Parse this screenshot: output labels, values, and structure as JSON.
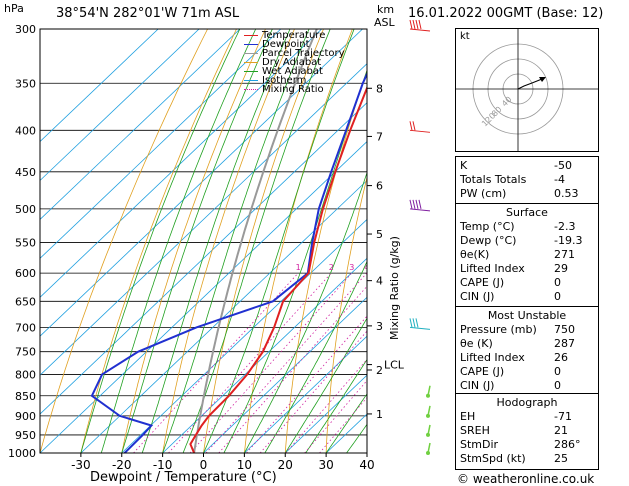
{
  "header": {
    "pressure_unit": "hPa",
    "location": "38°54'N  282°01'W  71m  ASL",
    "alt_unit_line1": "km",
    "alt_unit_line2": "ASL",
    "datetime": "16.01.2022  00GMT  (Base: 12)"
  },
  "chart_data": {
    "type": "skew-t",
    "xlabel": "Dewpoint / Temperature (°C)",
    "mixing_ratio_axis_label": "Mixing Ratio (g/kg)",
    "pressure_levels": [
      300,
      350,
      400,
      450,
      500,
      550,
      600,
      650,
      700,
      750,
      800,
      850,
      900,
      950,
      1000
    ],
    "x_ticks": [
      -30,
      -20,
      -10,
      0,
      10,
      20,
      30,
      40
    ],
    "km_ticks": [
      {
        "label": "8",
        "p": 355
      },
      {
        "label": "7",
        "p": 407
      },
      {
        "label": "6",
        "p": 468
      },
      {
        "label": "5",
        "p": 537
      },
      {
        "label": "4",
        "p": 613
      },
      {
        "label": "3",
        "p": 697
      },
      {
        "label": "2",
        "p": 790
      },
      {
        "label": "1",
        "p": 895
      }
    ],
    "lcl_label": "LCL",
    "lcl_p": 778,
    "mixing_ratio_labels": [
      "1",
      "2",
      "3",
      "4",
      "5",
      "8",
      "10",
      "15",
      "20",
      "25"
    ],
    "legend": [
      {
        "label": "Temperature",
        "color": "#e02020"
      },
      {
        "label": "Dewpoint",
        "color": "#2030d0"
      },
      {
        "label": "Parcel Trajectory",
        "color": "#999999"
      },
      {
        "label": "Dry Adiabat",
        "color": "#e0a020"
      },
      {
        "label": "Wet Adiabat",
        "color": "#20a020"
      },
      {
        "label": "Isotherm",
        "color": "#20a0e0"
      },
      {
        "label": "Mixing Ratio",
        "color": "#d020a0"
      }
    ],
    "temperature": [
      {
        "p": 1000,
        "t": -2.3
      },
      {
        "p": 975,
        "t": -5.5
      },
      {
        "p": 950,
        "t": -6.5
      },
      {
        "p": 925,
        "t": -7.5
      },
      {
        "p": 900,
        "t": -8.2
      },
      {
        "p": 850,
        "t": -8.5
      },
      {
        "p": 800,
        "t": -9.5
      },
      {
        "p": 750,
        "t": -11.5
      },
      {
        "p": 700,
        "t": -15.0
      },
      {
        "p": 650,
        "t": -19.5
      },
      {
        "p": 600,
        "t": -20.5
      },
      {
        "p": 550,
        "t": -27.0
      },
      {
        "p": 500,
        "t": -33.5
      },
      {
        "p": 450,
        "t": -40.0
      },
      {
        "p": 400,
        "t": -47.0
      },
      {
        "p": 350,
        "t": -54.5
      },
      {
        "p": 300,
        "t": -61.0
      }
    ],
    "dewpoint": [
      {
        "p": 1000,
        "t": -19.3
      },
      {
        "p": 950,
        "t": -19.5
      },
      {
        "p": 925,
        "t": -19.8
      },
      {
        "p": 900,
        "t": -30.0
      },
      {
        "p": 850,
        "t": -42.0
      },
      {
        "p": 800,
        "t": -45.0
      },
      {
        "p": 750,
        "t": -42.0
      },
      {
        "p": 700,
        "t": -34.0
      },
      {
        "p": 650,
        "t": -22.0
      },
      {
        "p": 600,
        "t": -20.7
      },
      {
        "p": 550,
        "t": -27.5
      },
      {
        "p": 500,
        "t": -34.5
      },
      {
        "p": 450,
        "t": -41.0
      },
      {
        "p": 400,
        "t": -48.0
      },
      {
        "p": 350,
        "t": -56.0
      },
      {
        "p": 300,
        "t": -64.0
      }
    ]
  },
  "hodograph": {
    "unit": "kt",
    "ring_labels": [
      "40",
      "80",
      "120"
    ]
  },
  "indices": {
    "rows": [
      {
        "label": "K",
        "value": "-50"
      },
      {
        "label": "Totals Totals",
        "value": "-4"
      },
      {
        "label": "PW (cm)",
        "value": "0.53"
      }
    ]
  },
  "surface": {
    "title": "Surface",
    "rows": [
      {
        "label": "Temp (°C)",
        "value": "-2.3"
      },
      {
        "label": "Dewp (°C)",
        "value": "-19.3"
      },
      {
        "label": "θe(K)",
        "value": "271"
      },
      {
        "label": "Lifted Index",
        "value": "29"
      },
      {
        "label": "CAPE (J)",
        "value": "0"
      },
      {
        "label": "CIN (J)",
        "value": "0"
      }
    ]
  },
  "unstable": {
    "title": "Most Unstable",
    "rows": [
      {
        "label": "Pressure (mb)",
        "value": "750"
      },
      {
        "label": "θe (K)",
        "value": "287"
      },
      {
        "label": "Lifted Index",
        "value": "26"
      },
      {
        "label": "CAPE (J)",
        "value": "0"
      },
      {
        "label": "CIN (J)",
        "value": "0"
      }
    ]
  },
  "hodo_table": {
    "title": "Hodograph",
    "rows": [
      {
        "label": "EH",
        "value": "-71"
      },
      {
        "label": "SREH",
        "value": "21"
      },
      {
        "label": "StmDir",
        "value": "286°"
      },
      {
        "label": "StmSpd (kt)",
        "value": "25"
      }
    ]
  },
  "footer": {
    "copyright": "© weatheronline.co.uk"
  }
}
